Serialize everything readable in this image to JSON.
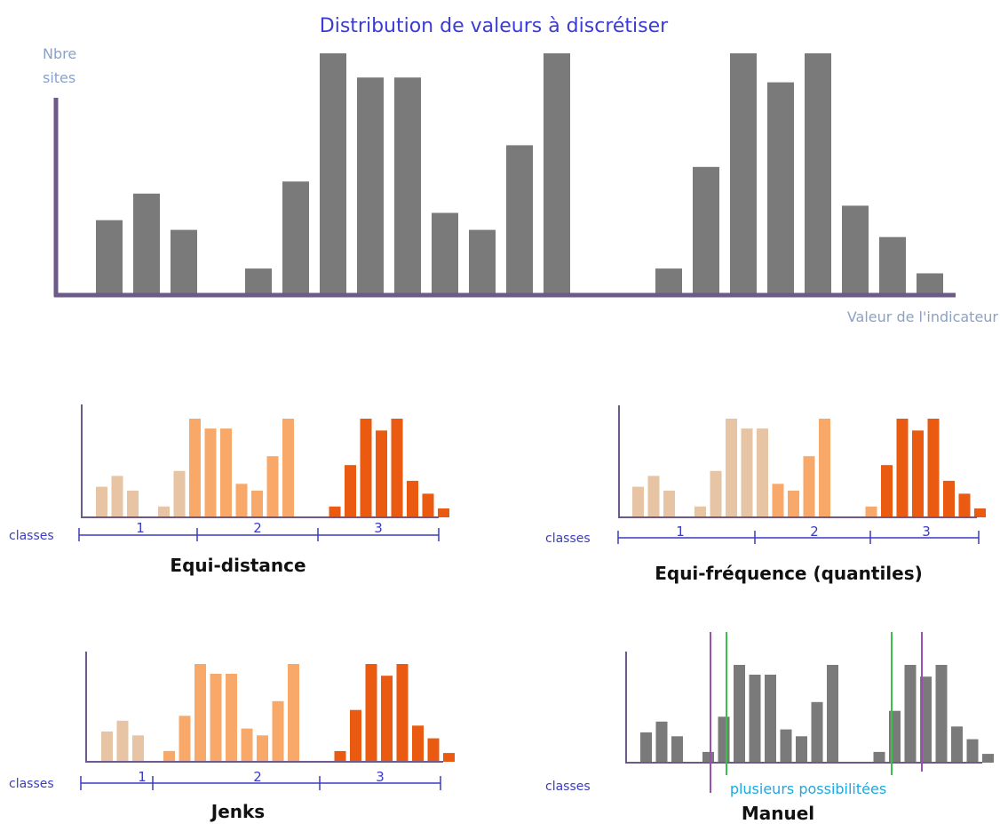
{
  "title": "Distribution de valeurs à discrétiser",
  "y_label": [
    "Nbre",
    "sites"
  ],
  "x_label": "Valeur de l'indicateur",
  "classes_label": "classes",
  "colors": {
    "title": "#3b3bd6",
    "axis": "#6b5a8a",
    "bar_grey": "#7a7a7a",
    "class1": "#e6c4a4",
    "class2": "#f8a868",
    "class3": "#ea5a10",
    "class_bracket": "#3c3cc0",
    "green_line": "#38c048",
    "purple_line": "#9a50b0",
    "note": "#1ea8e0"
  },
  "chart_data": {
    "type": "bar",
    "title": "Distribution de valeurs à discrétiser",
    "ylabel": "Nbre sites",
    "xlabel": "Valeur de l'indicateur",
    "values": [
      3.1,
      4.2,
      2.7,
      0,
      1.1,
      4.7,
      10,
      9,
      9,
      3.4,
      2.7,
      6.2,
      10,
      0,
      0,
      1.1,
      5.3,
      10,
      8.8,
      10,
      3.7,
      2.4,
      0.9
    ]
  },
  "panels": [
    {
      "id": "equi-distance",
      "label": "Equi-distance",
      "classes": [
        "1",
        "2",
        "3"
      ],
      "bar_classes": [
        1,
        1,
        1,
        0,
        1,
        1,
        2,
        2,
        2,
        2,
        2,
        2,
        2,
        0,
        0,
        3,
        3,
        3,
        3,
        3,
        3,
        3,
        3
      ]
    },
    {
      "id": "equi-frequence",
      "label": "Equi-fréquence (quantiles)",
      "classes": [
        "1",
        "2",
        "3"
      ],
      "bar_classes": [
        1,
        1,
        1,
        0,
        1,
        1,
        1,
        1,
        1,
        2,
        2,
        2,
        2,
        0,
        0,
        2,
        3,
        3,
        3,
        3,
        3,
        3,
        3
      ]
    },
    {
      "id": "jenks",
      "label": "Jenks",
      "classes": [
        "1",
        "2",
        "3"
      ],
      "bar_classes": [
        1,
        1,
        1,
        0,
        2,
        2,
        2,
        2,
        2,
        2,
        2,
        2,
        2,
        0,
        0,
        3,
        3,
        3,
        3,
        3,
        3,
        3,
        3
      ]
    },
    {
      "id": "manuel",
      "label": "Manuel",
      "note": "plusieurs possibilitées"
    }
  ]
}
